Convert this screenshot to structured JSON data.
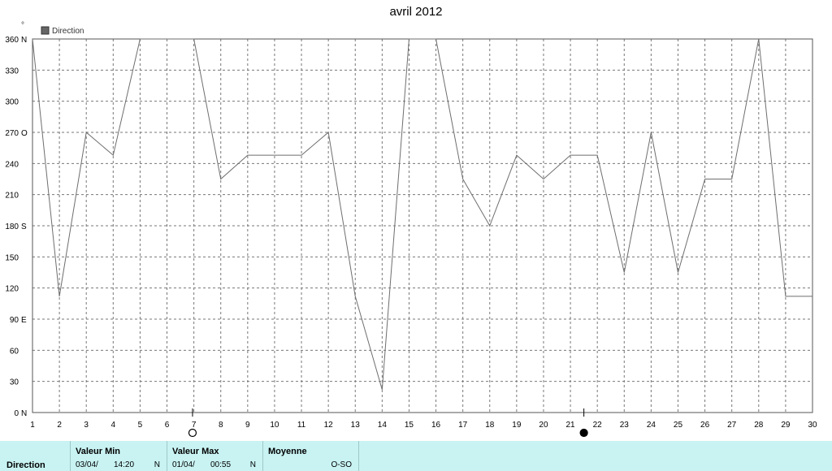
{
  "title": "avril 2012",
  "unit_symbol": "°",
  "chart_data": {
    "type": "line",
    "title": "avril 2012",
    "x_ticks": [
      1,
      2,
      3,
      4,
      5,
      6,
      7,
      8,
      9,
      10,
      11,
      12,
      13,
      14,
      15,
      16,
      17,
      18,
      19,
      20,
      21,
      22,
      23,
      24,
      25,
      26,
      27,
      28,
      29,
      30
    ],
    "xlim": [
      1,
      30
    ],
    "ylim": [
      0,
      360
    ],
    "y_ticks": [
      {
        "value": 0,
        "label": "0"
      },
      {
        "value": 30,
        "label": "30"
      },
      {
        "value": 60,
        "label": "60"
      },
      {
        "value": 90,
        "label": "90"
      },
      {
        "value": 120,
        "label": "120"
      },
      {
        "value": 150,
        "label": "150"
      },
      {
        "value": 180,
        "label": "180"
      },
      {
        "value": 210,
        "label": "210"
      },
      {
        "value": 240,
        "label": "240"
      },
      {
        "value": 270,
        "label": "270"
      },
      {
        "value": 300,
        "label": "300"
      },
      {
        "value": 330,
        "label": "330"
      },
      {
        "value": 360,
        "label": "360"
      }
    ],
    "y_cardinals": [
      {
        "value": 0,
        "label": "N"
      },
      {
        "value": 90,
        "label": "E"
      },
      {
        "value": 180,
        "label": "S"
      },
      {
        "value": 270,
        "label": "O"
      },
      {
        "value": 360,
        "label": "N"
      }
    ],
    "grid": true,
    "legend_position": "top-left",
    "series": [
      {
        "name": "Direction",
        "color": "#6e6e6e",
        "points": [
          [
            1,
            360
          ],
          [
            2,
            112
          ],
          [
            3,
            270
          ],
          [
            4,
            248
          ],
          [
            5,
            360
          ],
          [
            6,
            360
          ],
          [
            7,
            360
          ],
          [
            8,
            225
          ],
          [
            9,
            248
          ],
          [
            10,
            248
          ],
          [
            11,
            248
          ],
          [
            12,
            270
          ],
          [
            13,
            112
          ],
          [
            14,
            22
          ],
          [
            15,
            360
          ],
          [
            16,
            360
          ],
          [
            17,
            225
          ],
          [
            18,
            180
          ],
          [
            19,
            248
          ],
          [
            20,
            225
          ],
          [
            21,
            248
          ],
          [
            22,
            248
          ],
          [
            23,
            135
          ],
          [
            24,
            270
          ],
          [
            25,
            135
          ],
          [
            26,
            225
          ],
          [
            27,
            225
          ],
          [
            28,
            360
          ],
          [
            29,
            112
          ],
          [
            30,
            112
          ]
        ]
      }
    ],
    "moon_phases": [
      {
        "day": 6.95,
        "phase": "full-moon"
      },
      {
        "day": 21.5,
        "phase": "new-moon"
      }
    ]
  },
  "stats": {
    "row_label": "Direction",
    "min": {
      "header": "Valeur Min",
      "date": "03/04/",
      "time": "14:20",
      "value": "N"
    },
    "max": {
      "header": "Valeur Max",
      "date": "01/04/",
      "time": "00:55",
      "value": "N"
    },
    "mean": {
      "header": "Moyenne",
      "value": "O-SO"
    }
  }
}
